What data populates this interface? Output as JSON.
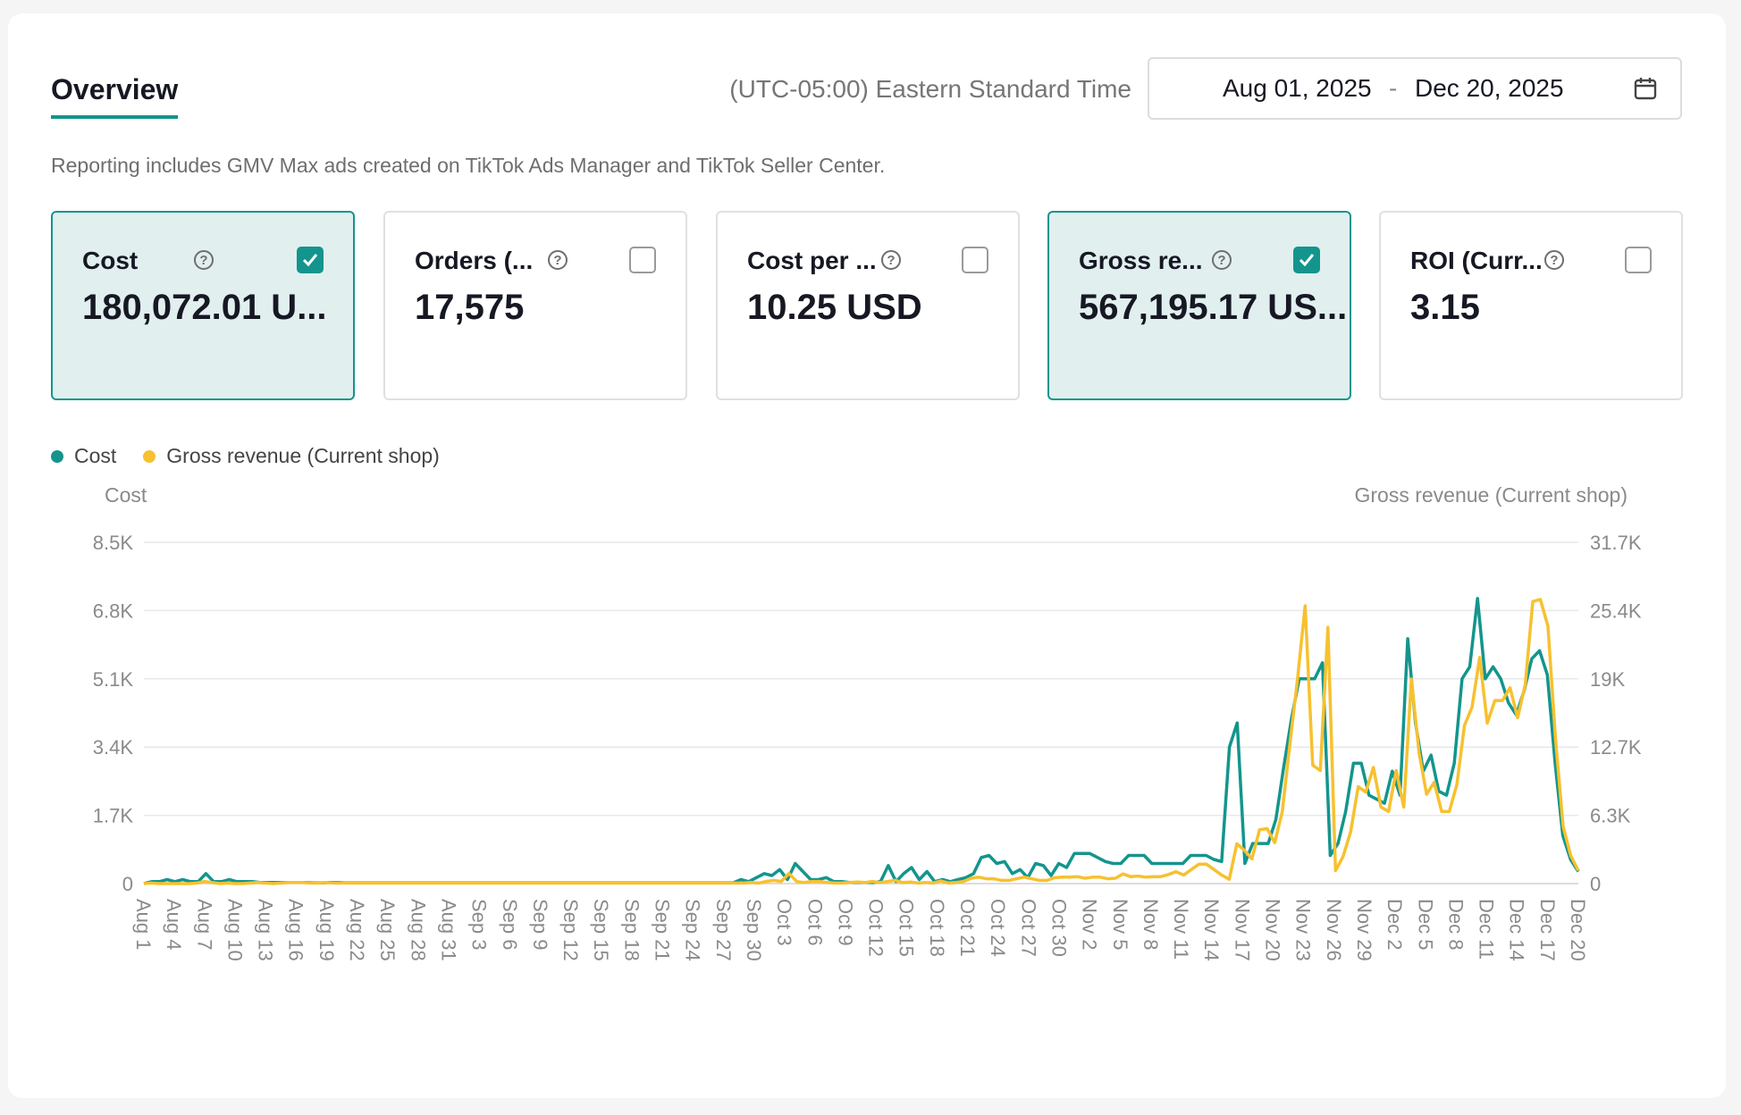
{
  "overview": {
    "tab_label": "Overview",
    "timezone": "(UTC-05:00) Eastern Standard Time",
    "date_start": "Aug 01, 2025",
    "date_separator": "-",
    "date_end": "Dec 20, 2025",
    "notice": "Reporting includes GMV Max ads created on TikTok Ads Manager and TikTok Seller Center."
  },
  "metrics": [
    {
      "label": "Cost",
      "value": "180,072.01 U...",
      "checked": true
    },
    {
      "label": "Orders (...",
      "value": "17,575",
      "checked": false
    },
    {
      "label": "Cost per ...",
      "value": "10.25 USD",
      "checked": false
    },
    {
      "label": "Gross re...",
      "value": "567,195.17 US...",
      "checked": true
    },
    {
      "label": "ROI (Curr...",
      "value": "3.15",
      "checked": false
    }
  ],
  "legend": {
    "cost": "Cost",
    "revenue": "Gross revenue (Current shop)"
  },
  "colors": {
    "accent": "#13958d",
    "cost_line": "#13958d",
    "revenue_line": "#f7c12f",
    "active_card_bg": "#e1efef"
  },
  "chart_data": {
    "type": "line",
    "y_left_label": "Cost",
    "y_right_label": "Gross revenue (Current shop)",
    "y_left_ticks": [
      "0",
      "1.7K",
      "3.4K",
      "5.1K",
      "6.8K",
      "8.5K"
    ],
    "y_right_ticks": [
      "0",
      "6.3K",
      "12.7K",
      "19K",
      "25.4K",
      "31.7K"
    ],
    "y_left_max": 8500,
    "y_right_max": 31700,
    "x_tick_labels": [
      "Aug 1",
      "Aug 4",
      "Aug 7",
      "Aug 10",
      "Aug 13",
      "Aug 16",
      "Aug 19",
      "Aug 22",
      "Aug 25",
      "Aug 28",
      "Aug 31",
      "Sep 3",
      "Sep 6",
      "Sep 9",
      "Sep 12",
      "Sep 15",
      "Sep 18",
      "Sep 21",
      "Sep 24",
      "Sep 27",
      "Sep 30",
      "Oct 3",
      "Oct 6",
      "Oct 9",
      "Oct 12",
      "Oct 15",
      "Oct 18",
      "Oct 21",
      "Oct 24",
      "Oct 27",
      "Oct 30",
      "Nov 2",
      "Nov 5",
      "Nov 8",
      "Nov 11",
      "Nov 14",
      "Nov 17",
      "Nov 20",
      "Nov 23",
      "Nov 26",
      "Nov 29",
      "Dec 2",
      "Dec 5",
      "Dec 8",
      "Dec 11",
      "Dec 14",
      "Dec 17",
      "Dec 20"
    ],
    "grid": true,
    "legend_position": "top-left",
    "series": [
      {
        "name": "Cost",
        "axis": "left",
        "values": [
          0,
          50,
          50,
          100,
          50,
          100,
          50,
          50,
          250,
          50,
          50,
          100,
          50,
          50,
          50,
          30,
          30,
          30,
          30,
          30,
          30,
          30,
          20,
          20,
          30,
          30,
          20,
          20,
          20,
          20,
          20,
          20,
          20,
          20,
          20,
          20,
          20,
          20,
          20,
          20,
          20,
          20,
          20,
          20,
          20,
          20,
          20,
          20,
          20,
          20,
          20,
          20,
          20,
          20,
          20,
          20,
          20,
          20,
          20,
          20,
          20,
          20,
          20,
          20,
          20,
          20,
          20,
          20,
          20,
          20,
          20,
          20,
          20,
          20,
          20,
          20,
          20,
          100,
          50,
          150,
          250,
          200,
          350,
          100,
          500,
          300,
          100,
          100,
          150,
          50,
          50,
          30,
          30,
          30,
          30,
          50,
          450,
          50,
          250,
          400,
          100,
          300,
          50,
          100,
          50,
          100,
          150,
          250,
          650,
          700,
          500,
          550,
          250,
          350,
          150,
          500,
          450,
          200,
          500,
          400,
          750,
          750,
          750,
          650,
          550,
          500,
          500,
          700,
          700,
          700,
          500,
          500,
          500,
          500,
          500,
          700,
          700,
          700,
          600,
          550,
          3400,
          4000,
          500,
          1000,
          1000,
          1000,
          1600,
          2900,
          4100,
          5100,
          5100,
          5100,
          5500,
          700,
          1000,
          1800,
          3000,
          3000,
          2200,
          2100,
          2000,
          2800,
          2200,
          6100,
          4000,
          2800,
          3200,
          2300,
          2200,
          3000,
          5100,
          5400,
          7100,
          5100,
          5400,
          5100,
          4500,
          4200,
          4800,
          5600,
          5800,
          5200,
          3000,
          1200,
          600,
          300
        ]
      },
      {
        "name": "Gross revenue (Current shop)",
        "axis": "right",
        "values": [
          0,
          50,
          0,
          0,
          0,
          0,
          0,
          50,
          200,
          100,
          0,
          50,
          0,
          0,
          50,
          100,
          50,
          0,
          50,
          100,
          100,
          100,
          50,
          50,
          100,
          50,
          50,
          50,
          50,
          50,
          50,
          50,
          50,
          50,
          50,
          50,
          50,
          50,
          50,
          50,
          50,
          50,
          50,
          50,
          50,
          50,
          50,
          50,
          50,
          50,
          50,
          50,
          50,
          50,
          50,
          50,
          50,
          50,
          50,
          50,
          50,
          50,
          50,
          50,
          50,
          50,
          50,
          50,
          50,
          50,
          50,
          50,
          50,
          50,
          50,
          50,
          50,
          50,
          50,
          50,
          100,
          50,
          200,
          300,
          200,
          950,
          200,
          100,
          200,
          200,
          100,
          50,
          50,
          100,
          150,
          100,
          200,
          100,
          200,
          300,
          100,
          150,
          50,
          100,
          50,
          250,
          50,
          100,
          200,
          500,
          600,
          450,
          450,
          300,
          300,
          450,
          600,
          450,
          300,
          300,
          550,
          600,
          600,
          650,
          500,
          600,
          600,
          450,
          500,
          900,
          650,
          700,
          600,
          650,
          650,
          850,
          1100,
          800,
          1300,
          1800,
          1800,
          1300,
          800,
          400,
          3700,
          3100,
          2300,
          5000,
          5100,
          3800,
          6700,
          13000,
          19000,
          25800,
          11000,
          10500,
          23800,
          1200,
          2500,
          4800,
          9000,
          8500,
          10800,
          7100,
          6700,
          10500,
          7100,
          19000,
          12200,
          8300,
          9400,
          6700,
          6700,
          9200,
          14700,
          16400,
          21000,
          14900,
          17000,
          17000,
          18200,
          15400,
          18500,
          26200,
          26400,
          23900,
          13400,
          5300,
          2600,
          1200
        ]
      }
    ]
  }
}
